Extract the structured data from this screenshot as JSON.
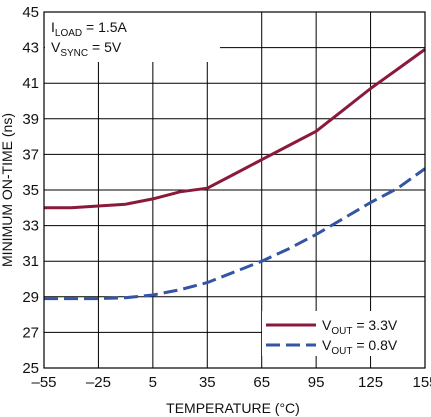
{
  "chart_data": {
    "type": "line",
    "xlabel": "TEMPERATURE (°C)",
    "ylabel": "MINIMUM ON-TIME (ns)",
    "xlim": [
      -55,
      155
    ],
    "ylim": [
      25,
      45
    ],
    "x_ticks": [
      -55,
      -25,
      5,
      35,
      65,
      95,
      125,
      155
    ],
    "x_tick_labels": [
      "–55",
      "–25",
      "5",
      "35",
      "65",
      "95",
      "125",
      "155"
    ],
    "y_ticks": [
      25,
      27,
      29,
      31,
      33,
      35,
      37,
      39,
      41,
      43,
      45
    ],
    "grid": true,
    "conditions": [
      {
        "main": "I",
        "sub": "LOAD",
        "rest": " = 1.5A"
      },
      {
        "main": "V",
        "sub": "SYNC",
        "rest": " = 5V"
      }
    ],
    "legend_position": "bottom-right",
    "series": [
      {
        "name_main": "V",
        "name_sub": "OUT",
        "name_rest": " = 3.3V",
        "color": "#8b1a3a",
        "dash": "solid",
        "x": [
          -55,
          -40,
          -25,
          -10,
          5,
          20,
          35,
          50,
          65,
          80,
          95,
          110,
          125,
          140,
          155
        ],
        "y": [
          34.0,
          34.0,
          34.1,
          34.2,
          34.5,
          34.9,
          35.1,
          35.9,
          36.7,
          37.5,
          38.3,
          39.5,
          40.7,
          41.8,
          42.9
        ]
      },
      {
        "name_main": "V",
        "name_sub": "OUT",
        "name_rest": " = 0.8V",
        "color": "#3355a5",
        "dash": "dashed",
        "x": [
          -55,
          -40,
          -25,
          -10,
          5,
          20,
          35,
          50,
          65,
          80,
          95,
          110,
          125,
          140,
          155
        ],
        "y": [
          28.9,
          28.9,
          28.9,
          28.95,
          29.1,
          29.4,
          29.8,
          30.4,
          31.0,
          31.7,
          32.5,
          33.4,
          34.3,
          35.1,
          36.2
        ]
      }
    ]
  }
}
